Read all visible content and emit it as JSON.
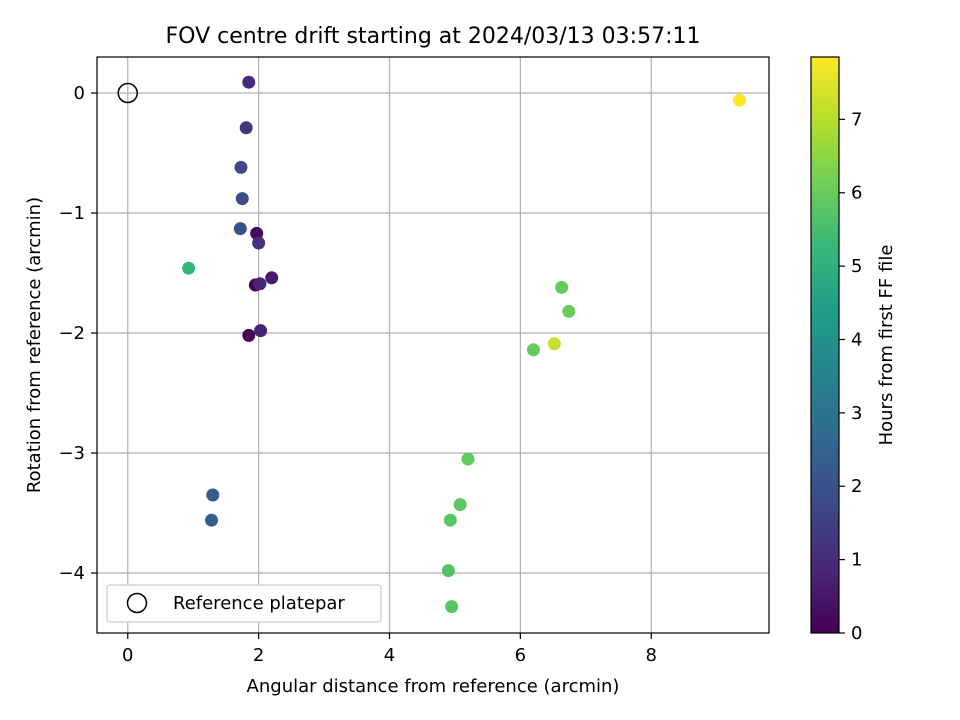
{
  "chart_data": {
    "type": "scatter",
    "title": "FOV centre drift starting at 2024/03/13 03:57:11",
    "xlabel": "Angular distance from reference (arcmin)",
    "ylabel": "Rotation from reference (arcmin)",
    "xlim": [
      -0.47,
      9.8
    ],
    "ylim": [
      -4.5,
      0.3
    ],
    "xticks": [
      0,
      2,
      4,
      6,
      8
    ],
    "yticks": [
      0,
      -1,
      -2,
      -3,
      -4
    ],
    "xtick_labels": [
      "0",
      "2",
      "4",
      "6",
      "8"
    ],
    "ytick_labels": [
      "0",
      "−1",
      "−2",
      "−3",
      "−4"
    ],
    "grid": true,
    "legend": {
      "placement": "lower-left",
      "entries": [
        "Reference platepar"
      ]
    },
    "reference_point": {
      "name": "Reference platepar",
      "x": 0,
      "y": 0,
      "marker": "open-circle"
    },
    "colorbar": {
      "label": "Hours from first FF file",
      "min": 0,
      "max": 7.85,
      "colormap": "viridis",
      "ticks": [
        0,
        1,
        2,
        3,
        4,
        5,
        6,
        7
      ],
      "tick_labels": [
        "0",
        "1",
        "2",
        "3",
        "4",
        "5",
        "6",
        "7"
      ]
    },
    "colormap_stops": [
      "#440154",
      "#482878",
      "#3e4989",
      "#31688e",
      "#26828e",
      "#1f9e89",
      "#35b779",
      "#6ece58",
      "#b5de2b",
      "#fde725"
    ],
    "points": [
      {
        "x": 1.85,
        "y": -2.02,
        "hours": 0.05
      },
      {
        "x": 1.95,
        "y": -1.6,
        "hours": 0.1
      },
      {
        "x": 1.97,
        "y": -1.17,
        "hours": 0.15
      },
      {
        "x": 2.2,
        "y": -1.54,
        "hours": 0.6
      },
      {
        "x": 2.03,
        "y": -1.98,
        "hours": 0.75
      },
      {
        "x": 2.02,
        "y": -1.59,
        "hours": 0.85
      },
      {
        "x": 1.85,
        "y": 0.09,
        "hours": 0.9
      },
      {
        "x": 2.0,
        "y": -1.25,
        "hours": 1.05
      },
      {
        "x": 1.81,
        "y": -0.29,
        "hours": 1.25
      },
      {
        "x": 1.73,
        "y": -0.62,
        "hours": 1.7
      },
      {
        "x": 1.75,
        "y": -0.88,
        "hours": 1.8
      },
      {
        "x": 1.72,
        "y": -1.13,
        "hours": 1.95
      },
      {
        "x": 1.3,
        "y": -3.35,
        "hours": 2.2
      },
      {
        "x": 1.28,
        "y": -3.56,
        "hours": 2.3
      },
      {
        "x": 0.93,
        "y": -1.46,
        "hours": 5.2
      },
      {
        "x": 4.9,
        "y": -3.98,
        "hours": 5.7
      },
      {
        "x": 4.95,
        "y": -4.28,
        "hours": 5.75
      },
      {
        "x": 4.93,
        "y": -3.56,
        "hours": 5.8
      },
      {
        "x": 5.08,
        "y": -3.43,
        "hours": 5.85
      },
      {
        "x": 5.2,
        "y": -3.05,
        "hours": 5.9
      },
      {
        "x": 6.2,
        "y": -2.14,
        "hours": 5.95
      },
      {
        "x": 6.63,
        "y": -1.62,
        "hours": 6.0
      },
      {
        "x": 6.74,
        "y": -1.82,
        "hours": 6.05
      },
      {
        "x": 6.52,
        "y": -2.09,
        "hours": 7.15
      },
      {
        "x": 9.35,
        "y": -0.06,
        "hours": 7.8
      }
    ]
  }
}
